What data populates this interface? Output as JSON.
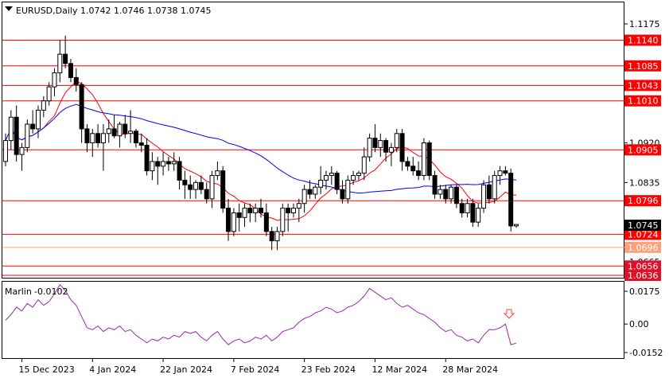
{
  "header": {
    "symbol": "EURUSD,Daily",
    "ohlc": "1.0742 1.0746 1.0738 1.0745"
  },
  "indicator": {
    "name": "Marlin",
    "value": "-0.0102"
  },
  "colors": {
    "resistance_line": "#ff0000",
    "level_label_bg": "#ff0000",
    "level_label_dark_bg": "#e0102a",
    "lower_level_line": "#ffa07a",
    "ma_fast": "#ff0000",
    "ma_slow": "#0000ff",
    "oscillator": "#9c27b0",
    "signal_arrow": "#ff4040"
  },
  "chart_data": {
    "type": "candlestick",
    "title": "EURUSD,Daily",
    "y_ticks": [
      "1.1175",
      "1.1085",
      "1.0920",
      "1.0835",
      "1.0665"
    ],
    "x_ticks": [
      "15 Dec 2023",
      "4 Jan 2024",
      "22 Jan 2024",
      "7 Feb 2024",
      "23 Feb 2024",
      "12 Mar 2024",
      "28 Mar 2024"
    ],
    "levels": [
      {
        "label": "1.1140",
        "value": 1.114
      },
      {
        "label": "1.1085",
        "value": 1.1085
      },
      {
        "label": "1.1043",
        "value": 1.1043
      },
      {
        "label": "1.1010",
        "value": 1.101
      },
      {
        "label": "1.0905",
        "value": 1.0905
      },
      {
        "label": "1.0796",
        "value": 1.0796
      },
      {
        "label": "1.0724",
        "value": 1.0724
      },
      {
        "label": "1.0696",
        "value": 1.0696
      },
      {
        "label": "1.0656",
        "value": 1.0656
      },
      {
        "label": "1.0636",
        "value": 1.0636
      }
    ],
    "current_price": "1.0745",
    "candles": [
      [
        1.088,
        1.094,
        1.087,
        1.0925
      ],
      [
        1.0925,
        1.099,
        1.0905,
        1.0975
      ],
      [
        1.0975,
        1.1,
        1.088,
        1.0895
      ],
      [
        1.0895,
        1.092,
        1.086,
        1.091
      ],
      [
        1.091,
        1.097,
        1.09,
        1.096
      ],
      [
        1.096,
        1.099,
        1.094,
        1.095
      ],
      [
        1.095,
        1.1,
        1.093,
        1.099
      ],
      [
        1.099,
        1.102,
        1.0975,
        1.101
      ],
      [
        1.101,
        1.105,
        1.1,
        1.104
      ],
      [
        1.104,
        1.108,
        1.102,
        1.107
      ],
      [
        1.107,
        1.114,
        1.105,
        1.111
      ],
      [
        1.111,
        1.115,
        1.108,
        1.109
      ],
      [
        1.109,
        1.11,
        1.105,
        1.106
      ],
      [
        1.106,
        1.108,
        1.103,
        1.1045
      ],
      [
        1.1045,
        1.105,
        1.092,
        1.095
      ],
      [
        1.095,
        1.096,
        1.09,
        1.092
      ],
      [
        1.092,
        1.095,
        1.089,
        1.094
      ],
      [
        1.094,
        1.096,
        1.091,
        1.092
      ],
      [
        1.092,
        1.096,
        1.086,
        1.094
      ],
      [
        1.094,
        1.097,
        1.092,
        1.095
      ],
      [
        1.095,
        1.098,
        1.093,
        1.0935
      ],
      [
        1.0935,
        1.0965,
        1.091,
        1.096
      ],
      [
        1.096,
        1.098,
        1.093,
        1.094
      ],
      [
        1.094,
        1.099,
        1.092,
        1.0945
      ],
      [
        1.0945,
        1.095,
        1.091,
        1.092
      ],
      [
        1.092,
        1.094,
        1.09,
        1.0915
      ],
      [
        1.0915,
        1.093,
        1.085,
        1.086
      ],
      [
        1.086,
        1.09,
        1.084,
        1.088
      ],
      [
        1.088,
        1.089,
        1.083,
        1.087
      ],
      [
        1.087,
        1.09,
        1.085,
        1.088
      ],
      [
        1.088,
        1.089,
        1.086,
        1.0875
      ],
      [
        1.0875,
        1.09,
        1.086,
        1.088
      ],
      [
        1.088,
        1.089,
        1.082,
        1.084
      ],
      [
        1.084,
        1.086,
        1.08,
        1.083
      ],
      [
        1.083,
        1.085,
        1.08,
        1.082
      ],
      [
        1.082,
        1.084,
        1.08,
        1.0835
      ],
      [
        1.0835,
        1.085,
        1.081,
        1.082
      ],
      [
        1.082,
        1.0835,
        1.079,
        1.08
      ],
      [
        1.08,
        1.086,
        1.078,
        1.085
      ],
      [
        1.085,
        1.088,
        1.084,
        1.086
      ],
      [
        1.086,
        1.087,
        1.077,
        1.078
      ],
      [
        1.078,
        1.08,
        1.071,
        1.073
      ],
      [
        1.073,
        1.078,
        1.072,
        1.077
      ],
      [
        1.077,
        1.079,
        1.073,
        1.076
      ],
      [
        1.076,
        1.079,
        1.074,
        1.078
      ],
      [
        1.078,
        1.079,
        1.075,
        1.077
      ],
      [
        1.077,
        1.079,
        1.075,
        1.078
      ],
      [
        1.078,
        1.08,
        1.076,
        1.077
      ],
      [
        1.077,
        1.079,
        1.072,
        1.073
      ],
      [
        1.073,
        1.074,
        1.069,
        1.071
      ],
      [
        1.071,
        1.074,
        1.069,
        1.073
      ],
      [
        1.073,
        1.079,
        1.072,
        1.078
      ],
      [
        1.078,
        1.079,
        1.073,
        1.077
      ],
      [
        1.077,
        1.079,
        1.076,
        1.078
      ],
      [
        1.078,
        1.08,
        1.075,
        1.079
      ],
      [
        1.079,
        1.083,
        1.077,
        1.082
      ],
      [
        1.082,
        1.084,
        1.08,
        1.081
      ],
      [
        1.081,
        1.083,
        1.08,
        1.0825
      ],
      [
        1.0825,
        1.087,
        1.081,
        1.084
      ],
      [
        1.084,
        1.086,
        1.082,
        1.085
      ],
      [
        1.085,
        1.087,
        1.083,
        1.0855
      ],
      [
        1.0855,
        1.086,
        1.081,
        1.082
      ],
      [
        1.082,
        1.084,
        1.079,
        1.08
      ],
      [
        1.08,
        1.085,
        1.079,
        1.084
      ],
      [
        1.084,
        1.086,
        1.083,
        1.085
      ],
      [
        1.085,
        1.086,
        1.084,
        1.0855
      ],
      [
        1.0855,
        1.091,
        1.084,
        1.089
      ],
      [
        1.089,
        1.094,
        1.088,
        1.093
      ],
      [
        1.093,
        1.096,
        1.09,
        1.091
      ],
      [
        1.091,
        1.094,
        1.089,
        1.0925
      ],
      [
        1.0925,
        1.093,
        1.088,
        1.09
      ],
      [
        1.09,
        1.092,
        1.087,
        1.091
      ],
      [
        1.091,
        1.095,
        1.09,
        1.094
      ],
      [
        1.094,
        1.095,
        1.086,
        1.088
      ],
      [
        1.088,
        1.089,
        1.086,
        1.087
      ],
      [
        1.087,
        1.089,
        1.085,
        1.086
      ],
      [
        1.086,
        1.088,
        1.084,
        1.085
      ],
      [
        1.085,
        1.093,
        1.084,
        1.092
      ],
      [
        1.092,
        1.0925,
        1.084,
        1.085
      ],
      [
        1.085,
        1.086,
        1.08,
        1.081
      ],
      [
        1.081,
        1.083,
        1.08,
        1.082
      ],
      [
        1.082,
        1.083,
        1.079,
        1.08
      ],
      [
        1.08,
        1.083,
        1.079,
        1.0825
      ],
      [
        1.0825,
        1.083,
        1.078,
        1.079
      ],
      [
        1.079,
        1.08,
        1.076,
        1.077
      ],
      [
        1.077,
        1.08,
        1.076,
        1.079
      ],
      [
        1.079,
        1.08,
        1.074,
        1.075
      ],
      [
        1.075,
        1.079,
        1.074,
        1.078
      ],
      [
        1.078,
        1.084,
        1.077,
        1.083
      ],
      [
        1.083,
        1.085,
        1.079,
        1.08
      ],
      [
        1.08,
        1.086,
        1.079,
        1.085
      ],
      [
        1.085,
        1.087,
        1.083,
        1.086
      ],
      [
        1.086,
        1.087,
        1.085,
        1.0855
      ],
      [
        1.0855,
        1.0865,
        1.073,
        1.0742
      ],
      [
        1.0742,
        1.0746,
        1.0738,
        1.0745
      ]
    ],
    "oscillator": {
      "name": "Marlin",
      "last_value": -0.0102,
      "y_ticks": [
        "0.0175",
        "0.00",
        "-0.0152"
      ],
      "values": [
        0.002,
        0.005,
        0.009,
        0.007,
        0.011,
        0.009,
        0.013,
        0.01,
        0.012,
        0.016,
        0.021,
        0.018,
        0.013,
        0.01,
        0.004,
        -0.002,
        -0.003,
        -0.001,
        -0.004,
        -0.002,
        -0.003,
        -0.001,
        -0.004,
        -0.003,
        -0.006,
        -0.008,
        -0.01,
        -0.008,
        -0.009,
        -0.007,
        -0.008,
        -0.006,
        -0.007,
        -0.004,
        -0.005,
        -0.004,
        -0.007,
        -0.009,
        -0.006,
        -0.004,
        -0.008,
        -0.011,
        -0.009,
        -0.008,
        -0.01,
        -0.009,
        -0.007,
        -0.008,
        -0.006,
        -0.009,
        -0.007,
        -0.004,
        -0.003,
        -0.002,
        0.001,
        0.003,
        0.004,
        0.006,
        0.007,
        0.009,
        0.008,
        0.006,
        0.007,
        0.009,
        0.01,
        0.012,
        0.015,
        0.019,
        0.017,
        0.015,
        0.013,
        0.014,
        0.011,
        0.009,
        0.01,
        0.008,
        0.006,
        0.005,
        0.003,
        0.001,
        -0.002,
        -0.004,
        -0.003,
        -0.006,
        -0.007,
        -0.009,
        -0.008,
        -0.01,
        -0.006,
        -0.003,
        -0.003,
        -0.002,
        0.0,
        -0.011,
        -0.0102
      ]
    }
  }
}
